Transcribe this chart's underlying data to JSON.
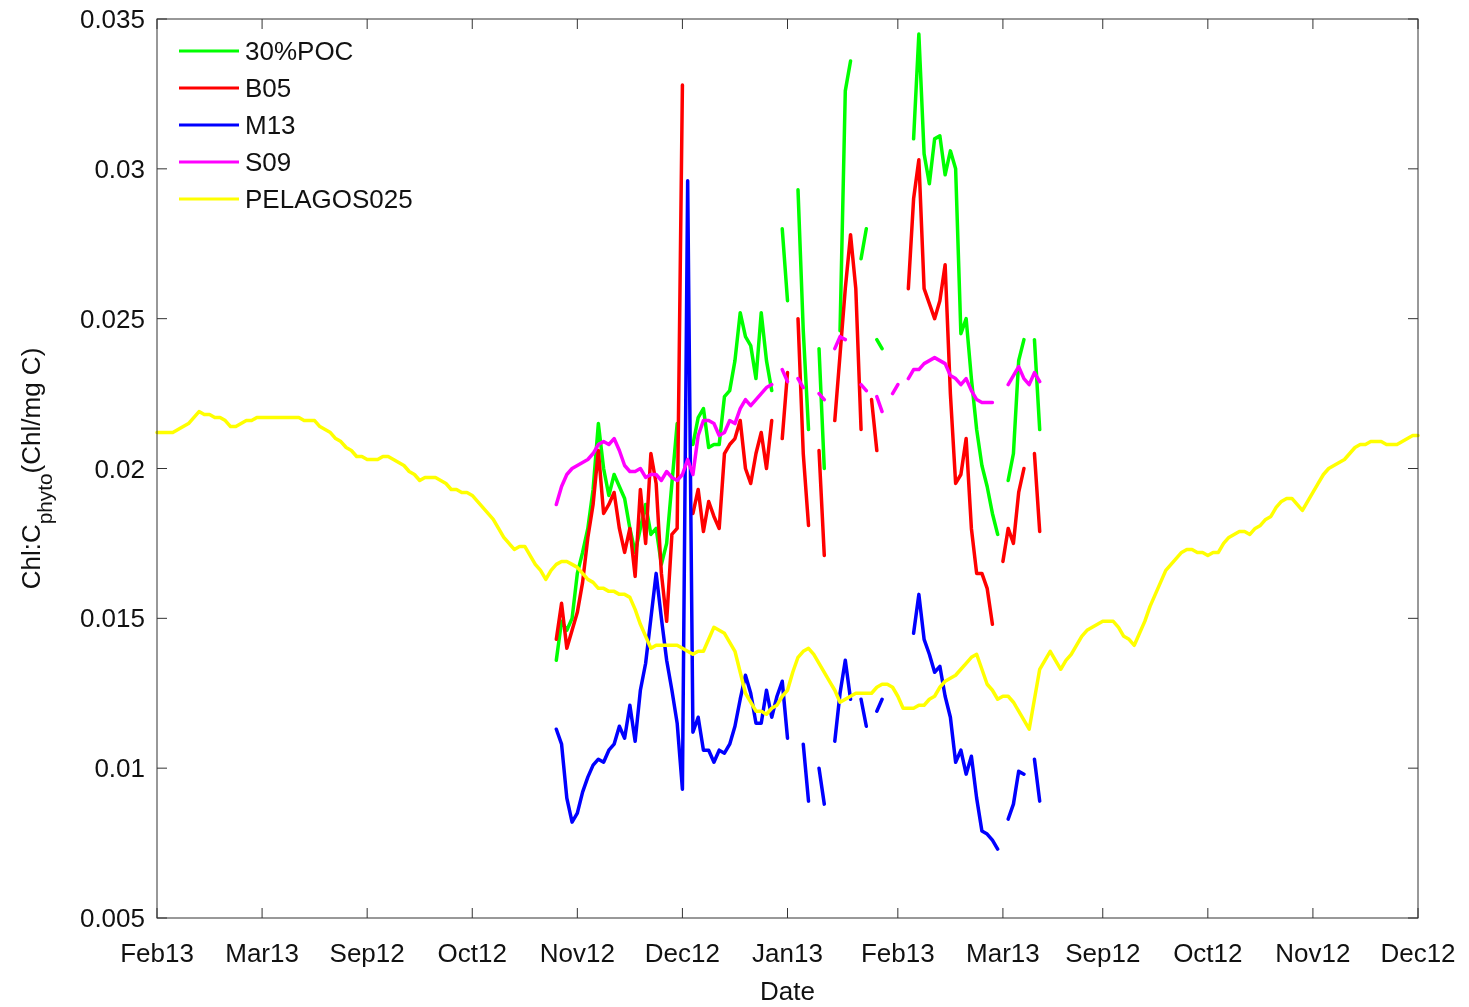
{
  "chart_data": {
    "type": "line",
    "xlabel": "Date",
    "ylabel": "Chl:C$_{phyto}$(Chl/mg C)",
    "categories": [
      "Feb13",
      null,
      null,
      null,
      null,
      null,
      null,
      null,
      null,
      null,
      null,
      null,
      null,
      null,
      null,
      null,
      null,
      null,
      null,
      null,
      "Mar13",
      null,
      null,
      null,
      null,
      null,
      null,
      null,
      null,
      null,
      null,
      null,
      null,
      null,
      null,
      null,
      null,
      null,
      null,
      null,
      "Sep12",
      null,
      null,
      null,
      null,
      null,
      null,
      null,
      null,
      null,
      null,
      null,
      null,
      null,
      null,
      null,
      null,
      null,
      null,
      null,
      "Oct12",
      null,
      null,
      null,
      null,
      null,
      null,
      null,
      null,
      null,
      null,
      null,
      null,
      null,
      null,
      null,
      null,
      null,
      null,
      null,
      "Nov12",
      null,
      null,
      null,
      null,
      null,
      null,
      null,
      null,
      null,
      null,
      null,
      null,
      null,
      null,
      null,
      null,
      null,
      null,
      null,
      "Dec12",
      null,
      null,
      null,
      null,
      null,
      null,
      null,
      null,
      null,
      null,
      null,
      null,
      null,
      null,
      null,
      null,
      null,
      null,
      null,
      "Jan13",
      null,
      null,
      null,
      null,
      null,
      null,
      null,
      null,
      null,
      null,
      null,
      null,
      null,
      null,
      null,
      null,
      null,
      null,
      null,
      null,
      "Feb13",
      null,
      null,
      null,
      null,
      null,
      null,
      null,
      null,
      null,
      null,
      null,
      null,
      null,
      null,
      null,
      null,
      null,
      null,
      null,
      "Mar13",
      null,
      null,
      null,
      null,
      null,
      null,
      null,
      null,
      null,
      null,
      null,
      null,
      null,
      null,
      null,
      null,
      null,
      null,
      "Sep12",
      null,
      null,
      null,
      null,
      null,
      null,
      null,
      null,
      null,
      null,
      null,
      null,
      null,
      null,
      null,
      null,
      null,
      null,
      null,
      "Oct12",
      null,
      null,
      null,
      null,
      null,
      null,
      null,
      null,
      null,
      null,
      null,
      null,
      null,
      null,
      null,
      null,
      null,
      null,
      null,
      "Nov12",
      null,
      null,
      null,
      null,
      null,
      null,
      null,
      null,
      null,
      null,
      null,
      null,
      null,
      null,
      null,
      null,
      null,
      null,
      null,
      "Dec12"
    ],
    "ylim": [
      0.005,
      0.035
    ],
    "yticks": [
      0.005,
      0.01,
      0.015,
      0.02,
      0.025,
      0.03,
      0.035
    ],
    "grid": false,
    "legend": "top left",
    "line_style": "solid",
    "marker": "none",
    "series": [
      {
        "name": "30%POC",
        "color": "#00ff00",
        "values": [
          null,
          null,
          null,
          null,
          null,
          null,
          null,
          null,
          null,
          null,
          null,
          null,
          null,
          null,
          null,
          null,
          null,
          null,
          null,
          null,
          null,
          null,
          null,
          null,
          null,
          null,
          null,
          null,
          null,
          null,
          null,
          null,
          null,
          null,
          null,
          null,
          null,
          null,
          null,
          null,
          null,
          null,
          null,
          null,
          null,
          null,
          null,
          null,
          null,
          null,
          null,
          null,
          null,
          null,
          null,
          null,
          null,
          null,
          null,
          null,
          null,
          null,
          null,
          null,
          null,
          null,
          null,
          null,
          null,
          null,
          null,
          null,
          null,
          null,
          null,
          null,
          0.0136,
          0.0149,
          0.0146,
          0.015,
          0.0165,
          0.0172,
          0.018,
          0.0193,
          0.0215,
          0.02,
          0.0191,
          0.0198,
          0.0194,
          0.019,
          0.018,
          0.0172,
          0.018,
          0.0188,
          0.0178,
          0.018,
          0.0168,
          0.0175,
          0.0195,
          0.0215,
          null,
          null,
          0.0208,
          0.0217,
          0.022,
          0.0207,
          0.0208,
          0.0208,
          0.0224,
          0.0226,
          0.0236,
          0.0252,
          0.0244,
          0.0241,
          0.023,
          0.0252,
          0.0236,
          0.0226,
          null,
          0.028,
          0.0256,
          null,
          0.0293,
          0.0246,
          0.0213,
          null,
          0.024,
          0.02,
          null,
          null,
          0.0246,
          0.0326,
          0.0336,
          null,
          0.027,
          0.028,
          null,
          0.0243,
          0.024,
          null,
          null,
          null,
          null,
          null,
          0.031,
          0.0345,
          0.0305,
          0.0295,
          0.031,
          0.0311,
          0.0298,
          0.0306,
          0.03,
          0.0245,
          0.025,
          0.023,
          0.0213,
          0.0201,
          0.0194,
          0.0185,
          0.0178,
          null,
          0.0196,
          0.0205,
          0.0236,
          0.0243,
          null,
          0.0243,
          0.0213,
          null,
          null,
          null,
          null,
          null,
          null,
          null,
          null,
          null,
          null,
          null,
          null,
          null,
          null,
          null,
          null,
          null,
          null,
          null,
          null,
          null,
          null,
          null,
          null,
          null,
          null,
          null,
          null,
          null,
          null,
          null,
          null,
          null,
          null,
          null,
          null,
          null,
          null,
          null,
          null,
          null,
          null,
          null,
          null,
          null,
          null,
          null,
          null,
          null,
          null,
          null,
          null,
          null,
          null,
          null,
          null,
          null,
          null,
          null,
          null,
          null,
          null,
          null,
          null,
          null,
          null,
          null,
          null,
          null,
          null,
          null,
          null
        ]
      },
      {
        "name": "B05",
        "color": "#ff0000",
        "values": [
          null,
          null,
          null,
          null,
          null,
          null,
          null,
          null,
          null,
          null,
          null,
          null,
          null,
          null,
          null,
          null,
          null,
          null,
          null,
          null,
          null,
          null,
          null,
          null,
          null,
          null,
          null,
          null,
          null,
          null,
          null,
          null,
          null,
          null,
          null,
          null,
          null,
          null,
          null,
          null,
          null,
          null,
          null,
          null,
          null,
          null,
          null,
          null,
          null,
          null,
          null,
          null,
          null,
          null,
          null,
          null,
          null,
          null,
          null,
          null,
          null,
          null,
          null,
          null,
          null,
          null,
          null,
          null,
          null,
          null,
          null,
          null,
          null,
          null,
          null,
          null,
          0.0143,
          0.0155,
          0.014,
          0.0146,
          0.0152,
          0.0162,
          0.0177,
          0.0188,
          0.0206,
          0.0185,
          0.0188,
          0.0192,
          0.018,
          0.0172,
          0.018,
          0.0164,
          0.0193,
          0.0175,
          0.0205,
          0.0195,
          0.0165,
          0.0149,
          0.0178,
          0.018,
          0.0328,
          null,
          0.0185,
          0.0193,
          0.0179,
          0.0189,
          0.0184,
          0.018,
          0.0205,
          0.0208,
          0.021,
          0.0216,
          0.02,
          0.0195,
          0.0205,
          0.0212,
          0.02,
          0.0216,
          null,
          0.021,
          0.0232,
          null,
          0.025,
          0.0205,
          0.0181,
          null,
          0.0206,
          0.0171,
          null,
          0.0216,
          0.0238,
          0.026,
          0.0278,
          0.026,
          0.0213,
          null,
          0.0223,
          0.0206,
          null,
          null,
          null,
          null,
          null,
          0.026,
          0.029,
          0.0303,
          0.026,
          0.0255,
          0.025,
          0.0256,
          0.0268,
          0.0225,
          0.0195,
          0.0198,
          0.021,
          0.018,
          0.0165,
          0.0165,
          0.016,
          0.0148,
          null,
          0.0169,
          0.018,
          0.0175,
          0.0192,
          0.02,
          null,
          0.0205,
          0.0179,
          null,
          null,
          null,
          null,
          null,
          null,
          null,
          null,
          null,
          null,
          null,
          null,
          null,
          null,
          null,
          null,
          null,
          null,
          null,
          null,
          null,
          null,
          null,
          null,
          null,
          null,
          null,
          null,
          null,
          null,
          null,
          null,
          null,
          null,
          null,
          null,
          null,
          null,
          null,
          null,
          null,
          null,
          null,
          null,
          null,
          null,
          null,
          null,
          null,
          null,
          null,
          null,
          null,
          null,
          null,
          null,
          null,
          null,
          null,
          null,
          null,
          null,
          null,
          null,
          null,
          null,
          null,
          null,
          null,
          null,
          null,
          null
        ]
      },
      {
        "name": "M13",
        "color": "#0000ff",
        "values": [
          null,
          null,
          null,
          null,
          null,
          null,
          null,
          null,
          null,
          null,
          null,
          null,
          null,
          null,
          null,
          null,
          null,
          null,
          null,
          null,
          null,
          null,
          null,
          null,
          null,
          null,
          null,
          null,
          null,
          null,
          null,
          null,
          null,
          null,
          null,
          null,
          null,
          null,
          null,
          null,
          null,
          null,
          null,
          null,
          null,
          null,
          null,
          null,
          null,
          null,
          null,
          null,
          null,
          null,
          null,
          null,
          null,
          null,
          null,
          null,
          null,
          null,
          null,
          null,
          null,
          null,
          null,
          null,
          null,
          null,
          null,
          null,
          null,
          null,
          null,
          null,
          0.0113,
          0.0108,
          0.009,
          0.0082,
          0.0085,
          0.0092,
          0.0097,
          0.0101,
          0.0103,
          0.0102,
          0.0106,
          0.0108,
          0.0114,
          0.011,
          0.0121,
          0.0109,
          0.0126,
          0.0135,
          0.015,
          0.0165,
          0.015,
          0.0136,
          0.0126,
          0.0115,
          0.0093,
          0.0296,
          0.0112,
          0.0117,
          0.0106,
          0.0106,
          0.0102,
          0.0106,
          0.0105,
          0.0108,
          0.0114,
          0.0123,
          0.0131,
          0.0125,
          0.0115,
          0.0115,
          0.0126,
          0.0117,
          0.0124,
          0.0129,
          0.011,
          null,
          null,
          0.0108,
          0.0089,
          null,
          0.01,
          0.0088,
          null,
          0.0109,
          0.0125,
          0.0136,
          0.0123,
          null,
          0.0123,
          0.0114,
          null,
          0.0119,
          0.0123,
          null,
          null,
          null,
          null,
          null,
          0.0145,
          0.0158,
          0.0143,
          0.0138,
          0.0132,
          0.0134,
          0.0124,
          0.0117,
          0.0102,
          0.0106,
          0.0098,
          0.0104,
          0.009,
          0.0079,
          0.0078,
          0.0076,
          0.0073,
          null,
          0.0083,
          0.0088,
          0.0099,
          0.0098,
          null,
          0.0103,
          0.0089,
          null,
          null,
          null,
          null,
          null,
          null,
          null,
          null,
          null,
          null,
          null,
          null,
          null,
          null,
          null,
          null,
          null,
          null,
          null,
          null,
          null,
          null,
          null,
          null,
          null,
          null,
          null,
          null,
          null,
          null,
          null,
          null,
          null,
          null,
          null,
          null,
          null,
          null,
          null,
          null,
          null,
          null,
          null,
          null,
          null,
          null,
          null,
          null,
          null,
          null,
          null,
          null,
          null,
          null,
          null,
          null,
          null,
          null,
          null,
          null,
          null,
          null,
          null,
          null,
          null,
          null,
          null,
          null,
          null,
          null,
          null,
          null
        ]
      },
      {
        "name": "S09",
        "color": "#ff00ff",
        "values": [
          null,
          null,
          null,
          null,
          null,
          null,
          null,
          null,
          null,
          null,
          null,
          null,
          null,
          null,
          null,
          null,
          null,
          null,
          null,
          null,
          null,
          null,
          null,
          null,
          null,
          null,
          null,
          null,
          null,
          null,
          null,
          null,
          null,
          null,
          null,
          null,
          null,
          null,
          null,
          null,
          null,
          null,
          null,
          null,
          null,
          null,
          null,
          null,
          null,
          null,
          null,
          null,
          null,
          null,
          null,
          null,
          null,
          null,
          null,
          null,
          null,
          null,
          null,
          null,
          null,
          null,
          null,
          null,
          null,
          null,
          null,
          null,
          null,
          null,
          null,
          null,
          0.0188,
          0.0194,
          0.0198,
          0.02,
          0.0201,
          0.0202,
          0.0203,
          0.0205,
          0.0208,
          0.0209,
          0.0208,
          0.021,
          0.0206,
          0.0201,
          0.0199,
          0.0199,
          0.02,
          0.0197,
          0.0198,
          0.0198,
          0.0196,
          0.0199,
          0.0197,
          0.0196,
          0.0198,
          0.0203,
          0.0198,
          0.0211,
          0.0216,
          0.0216,
          0.0215,
          0.0211,
          0.0212,
          0.0216,
          0.0215,
          0.022,
          0.0223,
          0.0221,
          0.0223,
          0.0225,
          0.0227,
          0.0228,
          null,
          0.0233,
          0.0229,
          null,
          0.023,
          0.0227,
          null,
          null,
          0.0225,
          0.0223,
          null,
          0.024,
          0.0244,
          0.0243,
          null,
          null,
          0.0228,
          0.0226,
          null,
          0.0224,
          0.0219,
          null,
          0.0225,
          0.0228,
          null,
          0.023,
          0.0233,
          0.0233,
          0.0235,
          0.0236,
          0.0237,
          0.0236,
          0.0235,
          0.0231,
          0.023,
          0.0228,
          0.023,
          0.0226,
          0.0223,
          0.0222,
          0.0222,
          0.0222,
          null,
          null,
          0.0228,
          0.0231,
          0.0234,
          0.023,
          0.0228,
          0.0232,
          0.0229,
          null,
          null,
          null,
          null,
          null,
          null,
          null,
          null,
          null,
          null,
          null,
          null,
          null,
          null,
          null,
          null,
          null,
          null,
          null,
          null,
          null,
          null,
          null,
          null,
          null,
          null,
          null,
          null,
          null,
          null,
          null,
          null,
          null,
          null,
          null,
          null,
          null,
          null,
          null,
          null,
          null,
          null,
          null,
          null,
          null,
          null,
          null,
          null,
          null,
          null,
          null,
          null,
          null,
          null,
          null,
          null,
          null,
          null,
          null,
          null,
          null,
          null,
          null,
          null,
          null,
          null,
          null,
          null,
          null,
          null,
          null,
          null
        ]
      },
      {
        "name": "PELAGOS025",
        "color": "#ffff00",
        "values": [
          0.0212,
          0.0212,
          0.0212,
          0.0212,
          0.0213,
          0.0214,
          0.0215,
          0.0217,
          0.0219,
          0.0218,
          0.0218,
          0.0217,
          0.0217,
          0.0216,
          0.0214,
          0.0214,
          0.0215,
          0.0216,
          0.0216,
          0.0217,
          0.0217,
          0.0217,
          0.0217,
          0.0217,
          0.0217,
          0.0217,
          0.0217,
          0.0217,
          0.0216,
          0.0216,
          0.0216,
          0.0214,
          0.0213,
          0.0212,
          0.021,
          0.0209,
          0.0207,
          0.0206,
          0.0204,
          0.0204,
          0.0203,
          0.0203,
          0.0203,
          0.0204,
          0.0204,
          0.0203,
          0.0202,
          0.0201,
          0.0199,
          0.0198,
          0.0196,
          0.0197,
          0.0197,
          0.0197,
          0.0196,
          0.0195,
          0.0193,
          0.0193,
          0.0192,
          0.0192,
          0.0191,
          0.0189,
          0.0187,
          0.0185,
          0.0183,
          0.018,
          0.0177,
          0.0175,
          0.0173,
          0.0174,
          0.0174,
          0.0171,
          0.0168,
          0.0166,
          0.0163,
          0.0166,
          0.0168,
          0.0169,
          0.0169,
          0.0168,
          0.0167,
          0.0165,
          0.0163,
          0.0162,
          0.016,
          0.016,
          0.0159,
          0.0159,
          0.0158,
          0.0158,
          0.0157,
          0.0153,
          0.0148,
          0.0144,
          0.014,
          0.0141,
          0.0141,
          0.0141,
          0.0141,
          0.0141,
          0.014,
          0.0139,
          0.0138,
          0.0139,
          0.0139,
          0.0143,
          0.0147,
          0.0146,
          0.0145,
          0.0142,
          0.0139,
          0.0132,
          0.0125,
          0.0122,
          0.0119,
          0.0119,
          0.0118,
          0.012,
          0.0121,
          0.0124,
          0.0126,
          0.0132,
          0.0137,
          0.0139,
          0.014,
          0.0138,
          0.0135,
          0.0132,
          0.0129,
          0.0126,
          0.0122,
          0.0123,
          0.0124,
          0.0125,
          0.0125,
          0.0125,
          0.0125,
          0.0127,
          0.0128,
          0.0128,
          0.0127,
          0.0124,
          0.012,
          0.012,
          0.012,
          0.0121,
          0.0121,
          0.0123,
          0.0124,
          0.0127,
          0.0129,
          0.013,
          0.0131,
          0.0133,
          0.0135,
          0.0137,
          0.0138,
          0.0133,
          0.0128,
          0.0126,
          0.0123,
          0.0124,
          0.0124,
          0.0122,
          0.0119,
          0.0116,
          0.0113,
          0.0123,
          0.0133,
          0.0136,
          0.0139,
          0.0136,
          0.0133,
          0.0136,
          0.0138,
          0.0141,
          0.0144,
          0.0146,
          0.0147,
          0.0148,
          0.0149,
          0.0149,
          0.0149,
          0.0147,
          0.0144,
          0.0143,
          0.0141,
          0.0145,
          0.0149,
          0.0154,
          0.0158,
          0.0162,
          0.0166,
          0.0168,
          0.017,
          0.0172,
          0.0173,
          0.0173,
          0.0172,
          0.0172,
          0.0171,
          0.0172,
          0.0172,
          0.0175,
          0.0177,
          0.0178,
          0.0179,
          0.0179,
          0.0178,
          0.018,
          0.0181,
          0.0183,
          0.0184,
          0.0187,
          0.0189,
          0.019,
          0.019,
          0.0188,
          0.0186,
          0.0189,
          0.0192,
          0.0195,
          0.0198,
          0.02,
          0.0201,
          0.0202,
          0.0203,
          0.0205,
          0.0207,
          0.0208,
          0.0208,
          0.0209,
          0.0209,
          0.0209,
          0.0208,
          0.0208,
          0.0208,
          0.0209,
          0.021,
          0.0211,
          0.0211
        ]
      }
    ]
  }
}
